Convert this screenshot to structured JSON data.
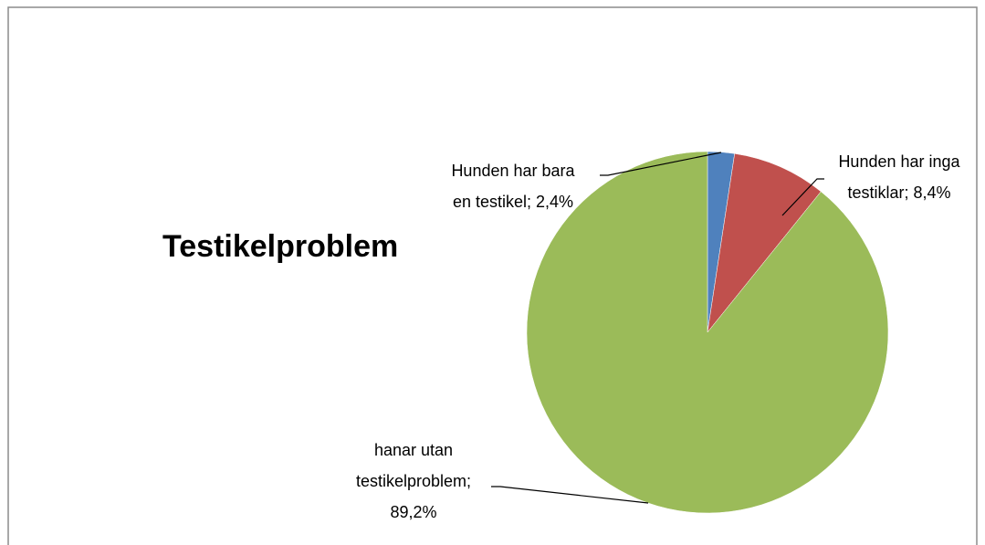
{
  "chart_data": {
    "type": "pie",
    "title": "Testikelproblem",
    "values": [
      2.4,
      8.4,
      89.2
    ],
    "value_labels": [
      "Hunden har bara en testikel; 2,4%",
      "Hunden har inga testiklar; 8,4%",
      "hanar utan testikelproblem; 89,2%"
    ],
    "colors": [
      "#4f81bd",
      "#c0504d",
      "#9bbb59"
    ]
  }
}
